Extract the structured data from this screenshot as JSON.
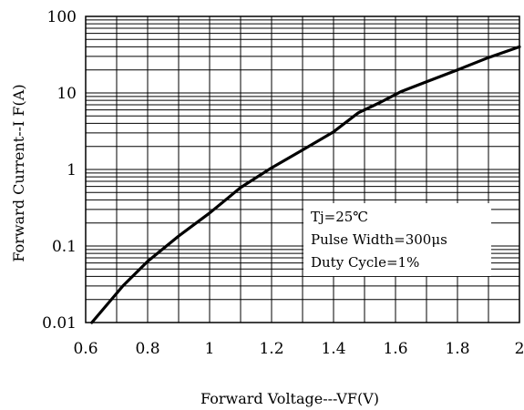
{
  "chart_data": {
    "type": "line",
    "title": "",
    "xlabel": "Forward Voltage---VF(V)",
    "ylabel": "Forward Current--I F(A)",
    "xlim": [
      0.6,
      2.0
    ],
    "ylim": [
      0.01,
      100
    ],
    "yscale": "log",
    "grid": true,
    "x_ticks": [
      "0.6",
      "0.8",
      "1",
      "1.2",
      "1.4",
      "1.6",
      "1.8",
      "2"
    ],
    "y_ticks": [
      "0.01",
      "0.1",
      "1",
      "10",
      "100"
    ],
    "annotation": [
      "Tj=25℃",
      "Pulse Width=300μs",
      "Duty Cycle=1%"
    ],
    "series": [
      {
        "x": [
          0.62,
          0.72,
          0.8,
          0.9,
          1.0,
          1.1,
          1.2,
          1.3,
          1.4,
          1.48,
          1.55,
          1.62,
          1.7,
          1.8,
          1.9,
          2.0
        ],
        "y": [
          0.01,
          0.03,
          0.063,
          0.135,
          0.27,
          0.58,
          1.05,
          1.8,
          3.1,
          5.5,
          7.5,
          10.5,
          14.0,
          20.0,
          29.0,
          40.0
        ]
      }
    ]
  }
}
